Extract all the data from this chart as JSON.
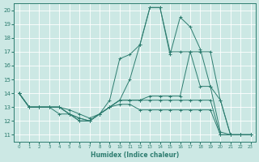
{
  "xlabel": "Humidex (Indice chaleur)",
  "bg_color": "#cce8e4",
  "line_color": "#2e7d70",
  "grid_color": "#ffffff",
  "xlim": [
    -0.5,
    23.5
  ],
  "ylim": [
    10.5,
    20.5
  ],
  "xticks": [
    0,
    1,
    2,
    3,
    4,
    5,
    6,
    7,
    8,
    9,
    10,
    11,
    12,
    13,
    14,
    15,
    16,
    17,
    18,
    19,
    20,
    21,
    22,
    23
  ],
  "yticks": [
    11,
    12,
    13,
    14,
    15,
    16,
    17,
    18,
    19,
    20
  ],
  "series": [
    {
      "x": [
        0,
        1,
        2,
        3,
        4,
        5,
        6,
        7,
        8,
        9,
        10,
        11,
        12,
        13,
        14,
        15,
        16,
        17,
        18,
        19,
        20,
        21,
        22,
        23
      ],
      "y": [
        14,
        13,
        13,
        13,
        13,
        12.5,
        12.2,
        12,
        12.5,
        13,
        13.5,
        15,
        17.5,
        20.2,
        20.2,
        17,
        17,
        17,
        17,
        17,
        13.5,
        11,
        11,
        11
      ]
    },
    {
      "x": [
        0,
        1,
        2,
        3,
        4,
        5,
        6,
        7,
        8,
        9,
        10,
        11,
        12,
        13,
        14,
        15,
        16,
        17,
        18,
        19,
        20,
        21,
        22,
        23
      ],
      "y": [
        14,
        13,
        13,
        13,
        13,
        12.5,
        12.2,
        12,
        12.5,
        13.5,
        16.5,
        16.8,
        17.5,
        20.2,
        20.2,
        16.8,
        19.5,
        18.8,
        17.2,
        14.5,
        13.5,
        11,
        11,
        11
      ]
    },
    {
      "x": [
        0,
        1,
        2,
        3,
        4,
        5,
        6,
        7,
        8,
        9,
        10,
        11,
        12,
        13,
        14,
        15,
        16,
        17,
        18,
        19,
        20,
        21,
        22,
        23
      ],
      "y": [
        14,
        13,
        13,
        13,
        13,
        12.5,
        12,
        12,
        12.5,
        13,
        13.5,
        13.5,
        13.5,
        13.8,
        13.8,
        13.8,
        13.8,
        17,
        14.5,
        14.5,
        11.2,
        11,
        11,
        11
      ]
    },
    {
      "x": [
        0,
        1,
        2,
        3,
        4,
        5,
        6,
        7,
        8,
        9,
        10,
        11,
        12,
        13,
        14,
        15,
        16,
        17,
        18,
        19,
        20,
        21,
        22,
        23
      ],
      "y": [
        14,
        13,
        13,
        13,
        12.5,
        12.5,
        12,
        12,
        12.5,
        13,
        13.5,
        13.5,
        13.5,
        13.5,
        13.5,
        13.5,
        13.5,
        13.5,
        13.5,
        13.5,
        11,
        11,
        11,
        11
      ]
    },
    {
      "x": [
        0,
        1,
        2,
        3,
        4,
        5,
        6,
        7,
        8,
        9,
        10,
        11,
        12,
        13,
        14,
        15,
        16,
        17,
        18,
        19,
        20,
        21,
        22,
        23
      ],
      "y": [
        14,
        13,
        13,
        13,
        13,
        12.8,
        12.5,
        12.2,
        12.5,
        13,
        13.2,
        13.2,
        12.8,
        12.8,
        12.8,
        12.8,
        12.8,
        12.8,
        12.8,
        12.8,
        11,
        11,
        11,
        11
      ]
    }
  ]
}
